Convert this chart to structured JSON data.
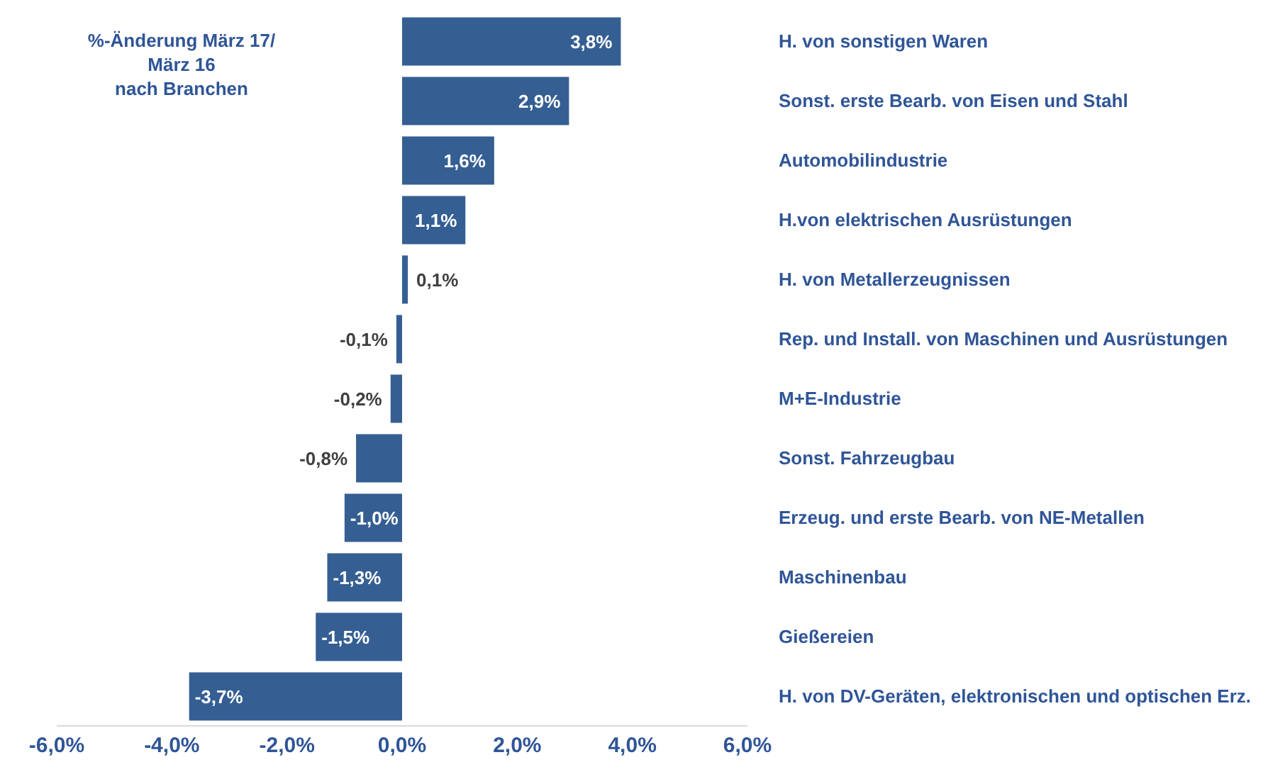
{
  "chart_data": {
    "type": "bar",
    "orientation": "horizontal",
    "title": "%-Änderung März 17/\nMärz 16\nnach Branchen",
    "categories": [
      "H. von sonstigen Waren",
      "Sonst. erste Bearb. von Eisen und Stahl",
      "Automobilindustrie",
      "H.von elektrischen Ausrüstungen",
      "H. von Metallerzeugnissen",
      "Rep. und Install. von Maschinen und Ausrüstungen",
      "M+E-Industrie",
      "Sonst. Fahrzeugbau",
      "Erzeug. und erste Bearb. von NE-Metallen",
      "Maschinenbau",
      "Gießereien",
      "H. von DV-Geräten, elektronischen und optischen Erz."
    ],
    "values": [
      3.8,
      2.9,
      1.6,
      1.1,
      0.1,
      -0.1,
      -0.2,
      -0.8,
      -1.0,
      -1.3,
      -1.5,
      -3.7
    ],
    "value_labels": [
      "3,8%",
      "2,9%",
      "1,6%",
      "1,1%",
      "0,1%",
      "-0,1%",
      "-0,2%",
      "-0,8%",
      "-1,0%",
      "-1,3%",
      "-1,5%",
      "-3,7%"
    ],
    "color": "#355f93",
    "xlim": [
      -6,
      6
    ],
    "xticks": [
      {
        "value": -6,
        "label": "-6,0%"
      },
      {
        "value": -4,
        "label": "-4,0%"
      },
      {
        "value": -2,
        "label": "-2,0%"
      },
      {
        "value": 0,
        "label": "0,0%"
      },
      {
        "value": 2,
        "label": "2,0%"
      },
      {
        "value": 4,
        "label": "4,0%"
      },
      {
        "value": 6,
        "label": "6,0%"
      }
    ],
    "grid": false,
    "legend": false
  }
}
